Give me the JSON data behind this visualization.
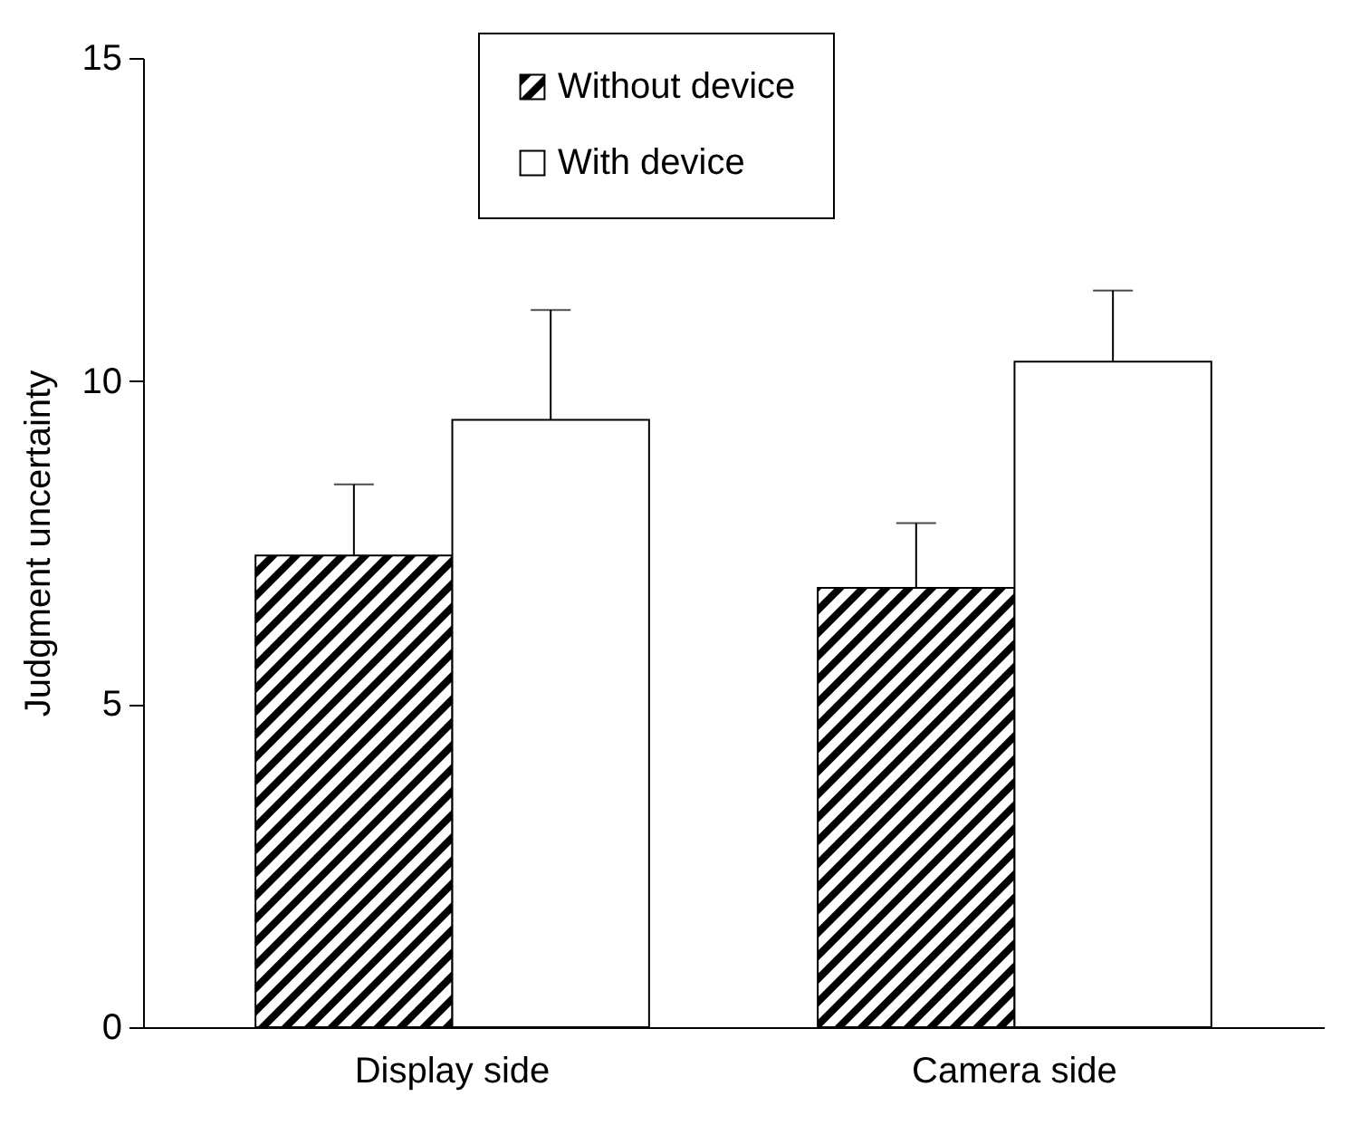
{
  "chart_data": {
    "type": "bar",
    "ylabel": "Judgment uncertainty",
    "categories": [
      "Display side",
      "Camera side"
    ],
    "series": [
      {
        "name": "Without device",
        "color": "#000000",
        "values": [
          7.3,
          6.8
        ],
        "errors": [
          [
            7.3,
            8.4
          ],
          [
            6.8,
            7.8
          ]
        ]
      },
      {
        "name": "With device",
        "color": "#ffffff",
        "values": [
          9.4,
          10.3
        ],
        "errors": [
          [
            9.4,
            11.1
          ],
          [
            10.3,
            11.4
          ]
        ]
      }
    ],
    "ylim": [
      0,
      15
    ],
    "yticks": [
      0,
      5,
      10,
      15
    ],
    "legend": "top",
    "grid": false
  }
}
